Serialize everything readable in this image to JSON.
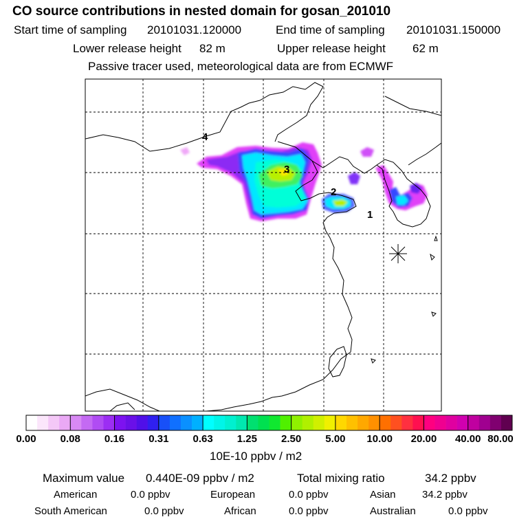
{
  "header": {
    "title": "CO  source contributions in nested domain for gosan_201010",
    "start_label": "Start time of sampling",
    "start_value": "20101031.120000",
    "end_label": "End time of sampling",
    "end_value": "20101031.150000",
    "lower_label": "Lower release height",
    "lower_value": "82 m",
    "upper_label": "Upper release height",
    "upper_value": "62 m",
    "tracer_note": "Passive tracer used, meteorological data are from ECMWF"
  },
  "map": {
    "region_labels": [
      "1",
      "2",
      "3",
      "4"
    ],
    "receptor": "gosan-station-marker",
    "plume_colors": [
      "#e000ff",
      "#8000ff",
      "#3040ff",
      "#00c0ff",
      "#00ffd0",
      "#70ff40",
      "#d0ff00",
      "#ffe000"
    ]
  },
  "colorbar": {
    "labels": [
      "0.00",
      "0.08",
      "0.16",
      "0.31",
      "0.63",
      "1.25",
      "2.50",
      "5.00",
      "10.00",
      "20.00",
      "40.00",
      "80.00"
    ],
    "colors": [
      "#ffffff",
      "#fbe6fb",
      "#f4c8f7",
      "#eaa9f5",
      "#d889f4",
      "#c46af3",
      "#b04cf3",
      "#9c2ef3",
      "#7d12f0",
      "#6a10e8",
      "#5010e8",
      "#3020f0",
      "#1850f8",
      "#1070ff",
      "#0a90ff",
      "#00b0ff",
      "#00ffff",
      "#00f5e8",
      "#00f0d0",
      "#00e8b0",
      "#00e070",
      "#00e050",
      "#10e830",
      "#50f000",
      "#90f000",
      "#b0f000",
      "#d0f000",
      "#f0f000",
      "#ffd800",
      "#ffc000",
      "#ffa800",
      "#ff9000",
      "#ff7000",
      "#ff5020",
      "#ff3040",
      "#ff1050",
      "#ff0080",
      "#f00090",
      "#e000a0",
      "#d000b0",
      "#c000a0",
      "#a00090",
      "#800070",
      "#600050"
    ],
    "units": "10E-10 ppbv / m2"
  },
  "stats": {
    "max_label": "Maximum value",
    "max_value": "0.440E-09 ppbv / m2",
    "total_label": "Total mixing ratio",
    "total_value": "34.2 ppbv"
  },
  "regions": [
    {
      "name": "American",
      "value": "0.0 ppbv"
    },
    {
      "name": "European",
      "value": "0.0 ppbv"
    },
    {
      "name": "Asian",
      "value": "34.2 ppbv"
    },
    {
      "name": "South American",
      "value": "0.0 ppbv"
    },
    {
      "name": "African",
      "value": "0.0 ppbv"
    },
    {
      "name": "Australian",
      "value": "0.0 ppbv"
    }
  ]
}
